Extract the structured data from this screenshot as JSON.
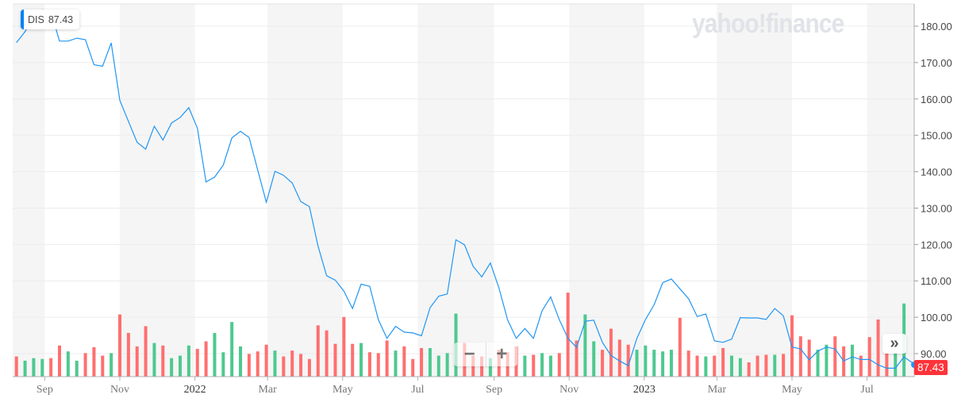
{
  "tooltip": {
    "symbol": "DIS",
    "value": "87.43"
  },
  "watermark": "yahoo!finance",
  "controls": {
    "zoom_out": "−",
    "zoom_in": "+",
    "scroll_right": "»"
  },
  "last_price_label": "87.43",
  "colors": {
    "line": "#2196f3",
    "up": "#4dc98f",
    "down": "#ff6f6f",
    "band": "#f5f5f5",
    "grid": "#ececec",
    "price_tag": "#ff333a",
    "tooltip_accent": "#0081f2"
  },
  "chart_data": {
    "type": "line",
    "symbol": "DIS",
    "ylim": [
      84,
      185
    ],
    "grid": true,
    "yticks": [
      "90.00",
      "100.00",
      "110.00",
      "120.00",
      "130.00",
      "140.00",
      "150.00",
      "160.00",
      "170.00",
      "180.00"
    ],
    "xticks": [
      {
        "label": "Sep",
        "date": "2021-09-01"
      },
      {
        "label": "Nov",
        "date": "2021-11-01"
      },
      {
        "label": "2022",
        "date": "2022-01-01"
      },
      {
        "label": "Mar",
        "date": "2022-03-01"
      },
      {
        "label": "May",
        "date": "2022-05-01"
      },
      {
        "label": "Jul",
        "date": "2022-07-01"
      },
      {
        "label": "Sep",
        "date": "2022-09-01"
      },
      {
        "label": "Nov",
        "date": "2022-11-01"
      },
      {
        "label": "2023",
        "date": "2023-01-01"
      },
      {
        "label": "Mar",
        "date": "2023-03-01"
      },
      {
        "label": "May",
        "date": "2023-05-01"
      },
      {
        "label": "Jul",
        "date": "2023-07-01"
      }
    ],
    "dates": [
      "2021-08-09",
      "2021-08-16",
      "2021-08-23",
      "2021-08-30",
      "2021-09-06",
      "2021-09-13",
      "2021-09-20",
      "2021-09-27",
      "2021-10-04",
      "2021-10-11",
      "2021-10-18",
      "2021-10-25",
      "2021-11-01",
      "2021-11-08",
      "2021-11-15",
      "2021-11-22",
      "2021-11-29",
      "2021-12-06",
      "2021-12-13",
      "2021-12-20",
      "2021-12-27",
      "2022-01-03",
      "2022-01-10",
      "2022-01-17",
      "2022-01-24",
      "2022-01-31",
      "2022-02-07",
      "2022-02-14",
      "2022-02-21",
      "2022-02-28",
      "2022-03-07",
      "2022-03-14",
      "2022-03-21",
      "2022-03-28",
      "2022-04-04",
      "2022-04-11",
      "2022-04-18",
      "2022-04-25",
      "2022-05-02",
      "2022-05-09",
      "2022-05-16",
      "2022-05-23",
      "2022-05-30",
      "2022-06-06",
      "2022-06-13",
      "2022-06-20",
      "2022-06-27",
      "2022-07-04",
      "2022-07-11",
      "2022-07-18",
      "2022-07-25",
      "2022-08-01",
      "2022-08-08",
      "2022-08-15",
      "2022-08-22",
      "2022-08-29",
      "2022-09-05",
      "2022-09-12",
      "2022-09-19",
      "2022-09-26",
      "2022-10-03",
      "2022-10-10",
      "2022-10-17",
      "2022-10-24",
      "2022-10-31",
      "2022-11-07",
      "2022-11-14",
      "2022-11-21",
      "2022-11-28",
      "2022-12-05",
      "2022-12-12",
      "2022-12-19",
      "2022-12-26",
      "2023-01-02",
      "2023-01-09",
      "2023-01-16",
      "2023-01-23",
      "2023-01-30",
      "2023-02-06",
      "2023-02-13",
      "2023-02-20",
      "2023-02-27",
      "2023-03-06",
      "2023-03-13",
      "2023-03-20",
      "2023-03-27",
      "2023-04-03",
      "2023-04-10",
      "2023-04-17",
      "2023-04-24",
      "2023-05-01",
      "2023-05-08",
      "2023-05-15",
      "2023-05-22",
      "2023-05-29",
      "2023-06-05",
      "2023-06-12",
      "2023-06-19",
      "2023-06-26",
      "2023-07-03",
      "2023-07-10",
      "2023-07-17",
      "2023-07-24",
      "2023-07-31",
      "2023-08-07"
    ],
    "close": [
      175.5,
      178.5,
      183,
      184.5,
      184,
      175.9,
      175.9,
      176.7,
      176.3,
      169.4,
      169.0,
      175.4,
      159.6,
      153.8,
      148.1,
      146.2,
      152.5,
      148.7,
      153.4,
      154.9,
      157.6,
      152.0,
      137.2,
      138.5,
      141.8,
      149.3,
      151.1,
      149.4,
      140.5,
      131.6,
      140.1,
      139.0,
      136.9,
      131.8,
      130.4,
      119.5,
      111.4,
      110.2,
      107.2,
      102.4,
      109.1,
      108.5,
      99.3,
      94.2,
      97.5,
      95.9,
      95.7,
      94.9,
      102.6,
      105.8,
      106.4,
      121.3,
      119.9,
      114.0,
      111.1,
      114.9,
      108.0,
      99.3,
      94.2,
      96.9,
      94.2,
      101.8,
      105.6,
      99.3,
      94.2,
      91.7,
      98.9,
      99.2,
      93.1,
      89.5,
      88.0,
      86.7,
      94.2,
      99.4,
      103.4,
      109.5,
      110.5,
      107.8,
      105.1,
      100.2,
      100.9,
      93.5,
      93.1,
      94.0,
      99.9,
      99.8,
      99.8,
      99.4,
      102.4,
      100.4,
      91.8,
      91.3,
      88.3,
      90.7,
      91.8,
      91.3,
      88.0,
      89.1,
      88.4,
      88.4,
      86.9,
      86.0,
      86.0,
      89.1,
      87.43
    ],
    "volume_relative": [
      24,
      19,
      22,
      21,
      22,
      37,
      30,
      19,
      28,
      35,
      25,
      28,
      74,
      52,
      36,
      60,
      40,
      37,
      22,
      25,
      37,
      33,
      42,
      52,
      29,
      65,
      36,
      27,
      30,
      38,
      31,
      24,
      31,
      27,
      21,
      61,
      55,
      39,
      71,
      39,
      40,
      29,
      28,
      43,
      31,
      36,
      21,
      34,
      34,
      25,
      28,
      75,
      40,
      25,
      24,
      22,
      32,
      29,
      36,
      25,
      26,
      28,
      25,
      28,
      100,
      43,
      74,
      42,
      32,
      57,
      44,
      38,
      32,
      37,
      32,
      30,
      32,
      70,
      31,
      25,
      24,
      25,
      34,
      25,
      22,
      17,
      25,
      26,
      26,
      27,
      73,
      48,
      44,
      32,
      38,
      48,
      36,
      38,
      25,
      47,
      68,
      28,
      28,
      87,
      null
    ],
    "volume_direction": [
      "down",
      "up",
      "up",
      "up",
      "down",
      "down",
      "up",
      "up",
      "down",
      "down",
      "down",
      "up",
      "down",
      "down",
      "down",
      "down",
      "up",
      "down",
      "up",
      "up",
      "up",
      "down",
      "down",
      "up",
      "up",
      "up",
      "up",
      "down",
      "down",
      "down",
      "up",
      "down",
      "down",
      "down",
      "down",
      "down",
      "down",
      "down",
      "down",
      "down",
      "up",
      "down",
      "down",
      "down",
      "up",
      "down",
      "down",
      "down",
      "up",
      "up",
      "up",
      "up",
      "down",
      "down",
      "down",
      "up",
      "down",
      "down",
      "down",
      "up",
      "down",
      "up",
      "up",
      "down",
      "down",
      "down",
      "up",
      "up",
      "down",
      "down",
      "down",
      "down",
      "up",
      "up",
      "up",
      "up",
      "up",
      "down",
      "down",
      "down",
      "up",
      "down",
      "down",
      "up",
      "up",
      "down",
      "down",
      "down",
      "up",
      "down",
      "down",
      "down",
      "down",
      "up",
      "up",
      "down",
      "down",
      "up",
      "down",
      "down",
      "down",
      "down",
      "up",
      "up",
      "up"
    ]
  }
}
